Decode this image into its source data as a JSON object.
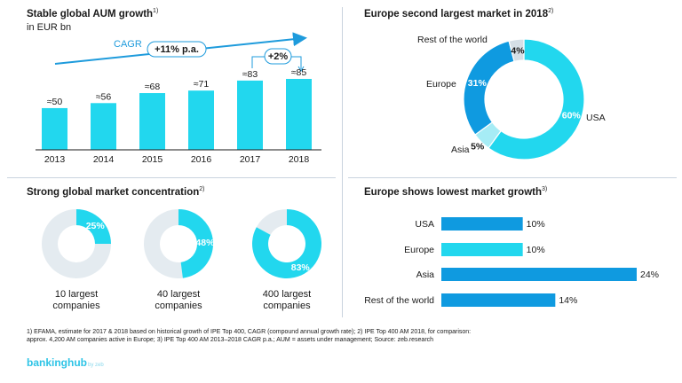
{
  "colors": {
    "cyan": "#22d7ee",
    "blue": "#0f9ae0",
    "light_cyan": "#a6ecf5",
    "grey": "#d5dfe6",
    "grey_light": "#e4ebf0",
    "arrow": "#1e9bdc"
  },
  "p1": {
    "title": "Stable global AUM growth",
    "title_sup": "1)",
    "unit": "in EUR bn",
    "cagr_label": "CAGR",
    "cagr_badge": "+11% p.a.",
    "growth_badge": "+2%"
  },
  "p2": {
    "title": "Europe second largest market in 2018",
    "title_sup": "2)"
  },
  "p3": {
    "title": "Strong global market concentration",
    "title_sup": "2)"
  },
  "p4": {
    "title": "Europe shows lowest market growth",
    "title_sup": "3)"
  },
  "chart_data": [
    {
      "type": "bar",
      "title": "Stable global AUM growth",
      "ylabel": "in EUR bn",
      "categories": [
        "2013",
        "2014",
        "2015",
        "2016",
        "2017",
        "2018"
      ],
      "values": [
        50,
        56,
        68,
        71,
        83,
        85
      ],
      "labels": [
        "≈50",
        "≈56",
        "≈68",
        "≈71",
        "≈83",
        "≈85"
      ],
      "ylim": [
        0,
        85
      ]
    },
    {
      "type": "pie",
      "title": "Europe second largest market in 2018",
      "slices": [
        {
          "name": "USA",
          "value": 60,
          "label": "60%"
        },
        {
          "name": "Asia",
          "value": 5,
          "label": "5%"
        },
        {
          "name": "Europe",
          "value": 31,
          "label": "31%"
        },
        {
          "name": "Rest of the world",
          "value": 4,
          "label": "4%"
        }
      ]
    },
    {
      "type": "pie",
      "title": "Strong global market concentration",
      "donuts": [
        {
          "share": 25,
          "label": "25%",
          "name_line1": "10 largest",
          "name_line2": "companies"
        },
        {
          "share": 48,
          "label": "48%",
          "name_line1": "40 largest",
          "name_line2": "companies"
        },
        {
          "share": 83,
          "label": "83%",
          "name_line1": "400 largest",
          "name_line2": "companies"
        }
      ]
    },
    {
      "type": "bar",
      "orientation": "horizontal",
      "title": "Europe shows lowest market growth",
      "categories": [
        "USA",
        "Europe",
        "Asia",
        "Rest of the world"
      ],
      "values": [
        10,
        10,
        24,
        14
      ],
      "labels": [
        "10%",
        "10%",
        "24%",
        "14%"
      ],
      "xlim": [
        0,
        24
      ]
    }
  ],
  "footnote": {
    "line1": "1) EFAMA, estimate for 2017 & 2018 based on historical growth of IPE Top 400, CAGR (compound annual growth rate); 2) IPE Top 400 AM 2018, for comparison:",
    "line2": "approx. 4,200 AM companies active in Europe; 3) IPE Top 400 AM 2013–2018 CAGR p.a.; AUM = assets under management; Source: zeb.research"
  },
  "logo": {
    "name": "bankinghub",
    "by": "by zeb"
  }
}
